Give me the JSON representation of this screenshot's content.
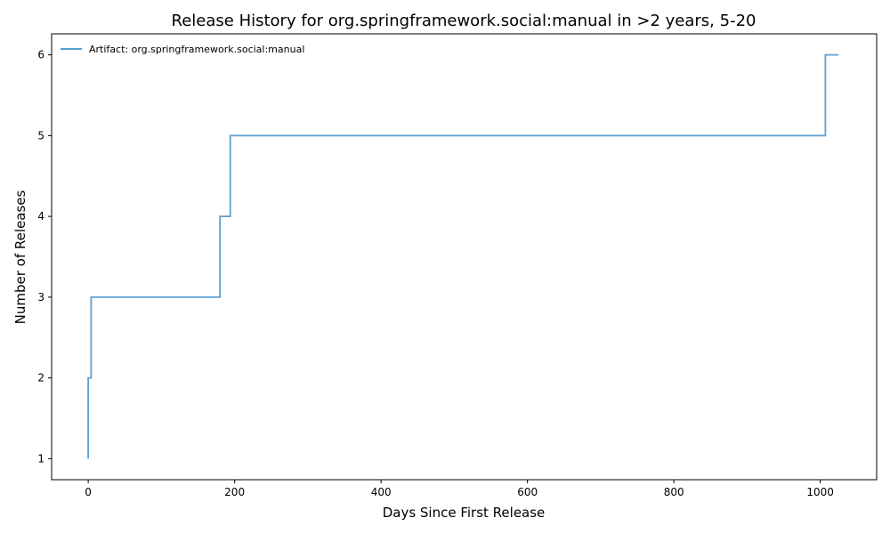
{
  "chart_data": {
    "type": "line",
    "title": "Release History for org.springframework.social:manual in >2 years, 5-20",
    "xlabel": "Days Since First Release",
    "ylabel": "Number of Releases",
    "xlim": [
      -50,
      1077
    ],
    "ylim": [
      0.74,
      6.26
    ],
    "xticks": [
      0,
      200,
      400,
      600,
      800,
      1000
    ],
    "yticks": [
      1,
      2,
      3,
      4,
      5,
      6
    ],
    "grid": false,
    "legend_position": "top-left",
    "step": "post",
    "series": [
      {
        "name": "Artifact: org.springframework.social:manual",
        "color": "#5b9fd1",
        "x": [
          0,
          0,
          4,
          180,
          194,
          1007,
          1025
        ],
        "y": [
          1,
          2,
          3,
          4,
          5,
          6,
          6
        ]
      }
    ]
  }
}
